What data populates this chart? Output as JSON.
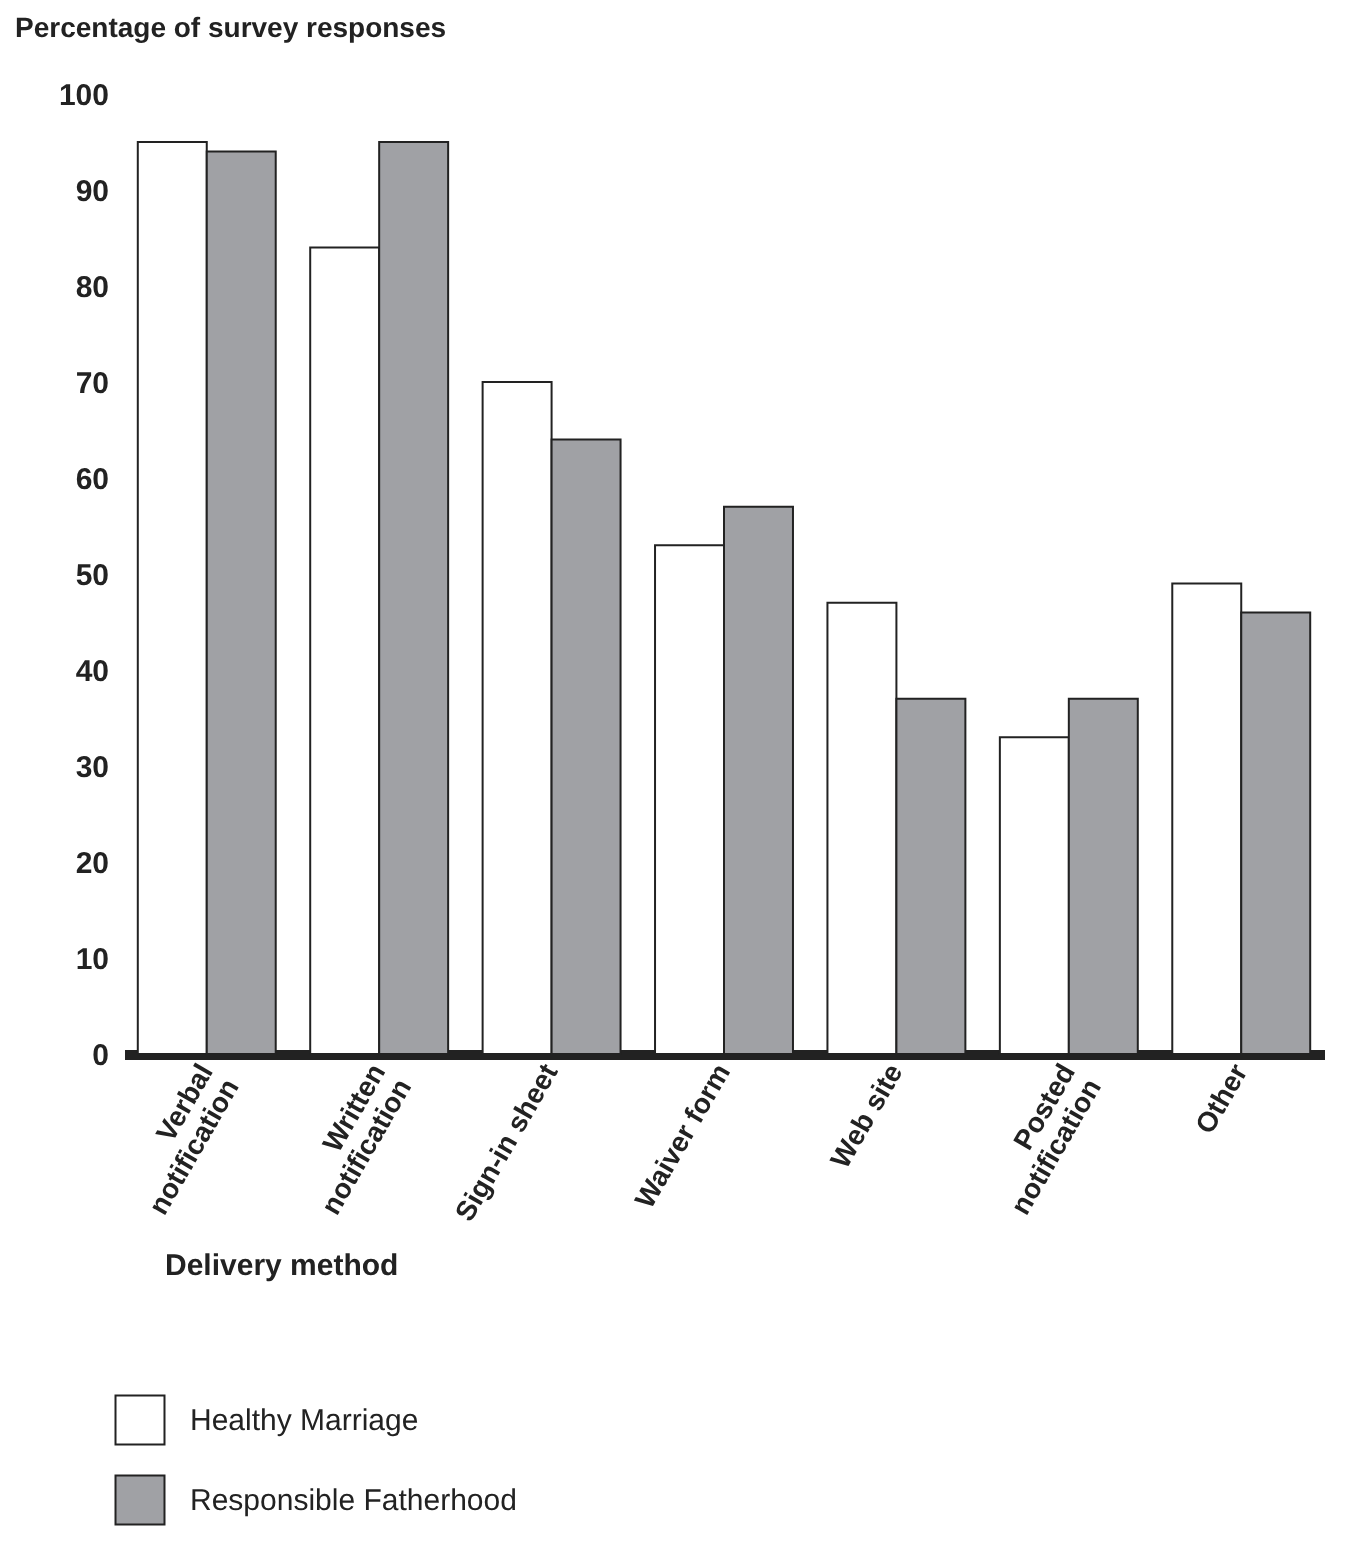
{
  "chart_data": {
    "type": "bar",
    "ylabel": "Percentage of survey responses",
    "xlabel": "Delivery method",
    "categories": [
      "Verbal\nnotification",
      "Written\nnotification",
      "Sign-in sheet",
      "Waiver form",
      "Web site",
      "Posted\nnotification",
      "Other"
    ],
    "series": [
      {
        "name": "Healthy Marriage",
        "color": "#ffffff",
        "values": [
          95,
          84,
          70,
          53,
          47,
          33,
          49
        ]
      },
      {
        "name": "Responsible Fatherhood",
        "color": "#a0a1a5",
        "values": [
          94,
          95,
          64,
          57,
          37,
          37,
          46
        ]
      }
    ],
    "ylim": [
      0,
      100
    ],
    "yticks": [
      0,
      10,
      20,
      30,
      40,
      50,
      60,
      70,
      80,
      90,
      100
    ],
    "grid": false,
    "legend": "bottom left"
  }
}
